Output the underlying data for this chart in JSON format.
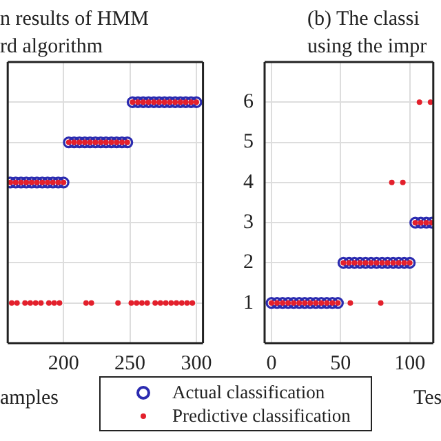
{
  "chart_data": [
    {
      "type": "scatter",
      "title": "n results of HMM\nrd algorithm",
      "xlabel": "amples",
      "xlim": [
        158,
        305
      ],
      "xticks": [
        200,
        250,
        300
      ],
      "ylim": [
        0,
        7
      ],
      "yticks": [
        1,
        2,
        3,
        4,
        5,
        6
      ],
      "tick_labels": "x",
      "grid": true,
      "legend": "bottom",
      "marker": "circle",
      "series": [
        {
          "name": "Actual classification",
          "color": "#2b2bb0",
          "x": [
            160,
            164,
            168,
            172,
            176,
            180,
            184,
            188,
            192,
            196,
            200,
            204,
            208,
            212,
            216,
            220,
            224,
            228,
            232,
            236,
            240,
            244,
            248,
            252,
            256,
            260,
            264,
            268,
            272,
            276,
            280,
            284,
            288,
            292,
            296,
            300
          ],
          "values": [
            4,
            4,
            4,
            4,
            4,
            4,
            4,
            4,
            4,
            4,
            4,
            5,
            5,
            5,
            5,
            5,
            5,
            5,
            5,
            5,
            5,
            5,
            5,
            6,
            6,
            6,
            6,
            6,
            6,
            6,
            6,
            6,
            6,
            6,
            6,
            6
          ]
        },
        {
          "name": "Predictive classification",
          "color": "#e3202c",
          "x": [
            160,
            164,
            168,
            172,
            176,
            180,
            184,
            188,
            192,
            196,
            200,
            204,
            208,
            212,
            216,
            220,
            224,
            228,
            232,
            236,
            240,
            244,
            248,
            252,
            256,
            260,
            264,
            268,
            272,
            276,
            280,
            284,
            288,
            292,
            296,
            300,
            161,
            165,
            171,
            175,
            179,
            183,
            189,
            193,
            197,
            217,
            221,
            241,
            251,
            255,
            259,
            263,
            269,
            273,
            277,
            281,
            285,
            289,
            293,
            297
          ],
          "values": [
            4,
            4,
            4,
            4,
            4,
            4,
            4,
            4,
            4,
            4,
            4,
            5,
            5,
            5,
            5,
            5,
            5,
            5,
            5,
            5,
            5,
            5,
            5,
            6,
            6,
            6,
            6,
            6,
            6,
            6,
            6,
            6,
            6,
            6,
            6,
            6,
            1,
            1,
            1,
            1,
            1,
            1,
            1,
            1,
            1,
            1,
            1,
            1,
            1,
            1,
            1,
            1,
            1,
            1,
            1,
            1,
            1,
            1,
            1,
            1
          ]
        }
      ]
    },
    {
      "type": "scatter",
      "title": "(b) The classi\nusing the impr",
      "xlabel": "Tes",
      "xlim": [
        -5,
        117
      ],
      "xticks": [
        0,
        50,
        100
      ],
      "ylim": [
        0,
        7
      ],
      "yticks": [
        1,
        2,
        3,
        4,
        5,
        6
      ],
      "grid": true,
      "legend": "bottom",
      "marker": "circle",
      "series": [
        {
          "name": "Actual classification",
          "color": "#2b2bb0",
          "x": [
            0,
            4,
            8,
            12,
            16,
            20,
            24,
            28,
            32,
            36,
            40,
            44,
            48,
            52,
            56,
            60,
            64,
            68,
            72,
            76,
            80,
            84,
            88,
            92,
            96,
            100,
            104,
            108,
            112,
            116
          ],
          "values": [
            1,
            1,
            1,
            1,
            1,
            1,
            1,
            1,
            1,
            1,
            1,
            1,
            1,
            2,
            2,
            2,
            2,
            2,
            2,
            2,
            2,
            2,
            2,
            2,
            2,
            2,
            3,
            3,
            3,
            3
          ]
        },
        {
          "name": "Predictive classification",
          "color": "#e3202c",
          "x": [
            0,
            4,
            8,
            12,
            16,
            20,
            24,
            28,
            32,
            36,
            40,
            44,
            48,
            52,
            56,
            60,
            64,
            68,
            72,
            76,
            80,
            84,
            88,
            92,
            96,
            100,
            104,
            108,
            112,
            116,
            57,
            79,
            87,
            95,
            107,
            115
          ],
          "values": [
            1,
            1,
            1,
            1,
            1,
            1,
            1,
            1,
            1,
            1,
            1,
            1,
            1,
            2,
            2,
            2,
            2,
            2,
            2,
            2,
            2,
            2,
            2,
            2,
            2,
            2,
            3,
            3,
            3,
            3,
            1,
            1,
            4,
            4,
            6,
            6
          ]
        }
      ]
    }
  ]
}
